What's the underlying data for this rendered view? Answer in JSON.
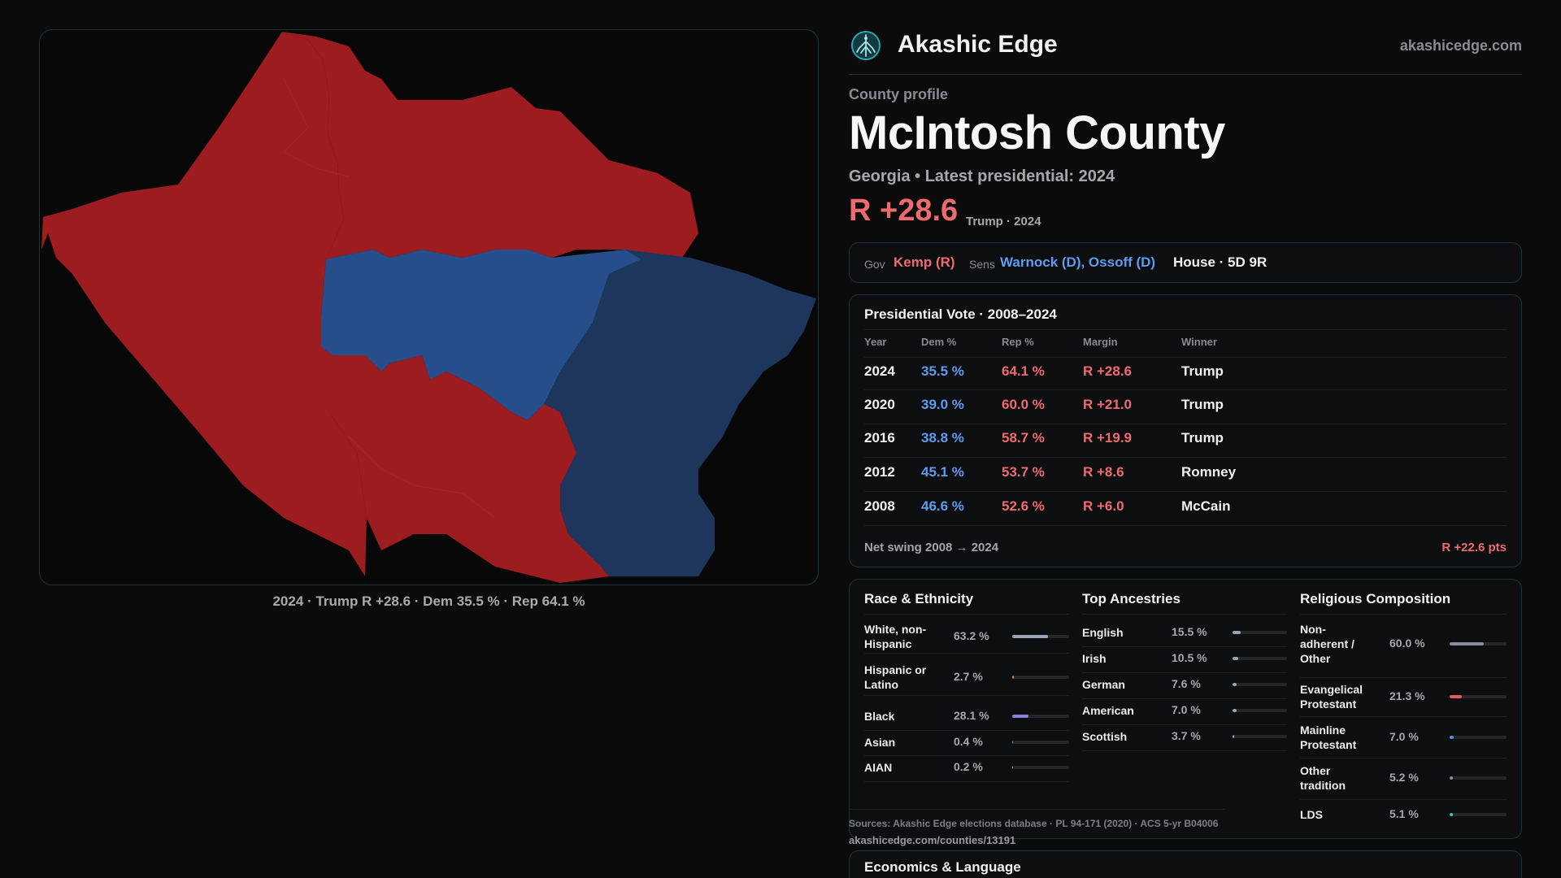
{
  "map": {
    "caption": "2024 · Trump R +28.6 · Dem 35.5 % · Rep 64.1 %",
    "colors": {
      "rep": "#9c1c20",
      "dem_light": "#254e8b",
      "dem_dark": "#1e355c"
    }
  },
  "header": {
    "brand": "Akashic Edge",
    "domain": "akashicedge.com",
    "logo_icon": "tree-icon"
  },
  "profile": {
    "eyebrow": "County profile",
    "county": "McIntosh County",
    "subtitle": "Georgia • Latest presidential: 2024",
    "margin": "R +28.6",
    "margin_note": "Trump · 2024"
  },
  "officials": {
    "gov_label": "Gov",
    "gov_value": "Kemp (R)",
    "sens_label": "Sens",
    "sens_value": "Warnock (D), Ossoff (D)",
    "house": "House · 5D 9R"
  },
  "presidential": {
    "title": "Presidential Vote · 2008–2024",
    "headers": [
      "Year",
      "Dem %",
      "Rep %",
      "Margin",
      "Winner"
    ],
    "rows": [
      {
        "year": "2024",
        "dem": "35.5 %",
        "rep": "64.1 %",
        "margin": "R +28.6",
        "winner": "Trump"
      },
      {
        "year": "2020",
        "dem": "39.0 %",
        "rep": "60.0 %",
        "margin": "R +21.0",
        "winner": "Trump"
      },
      {
        "year": "2016",
        "dem": "38.8 %",
        "rep": "58.7 %",
        "margin": "R +19.9",
        "winner": "Trump"
      },
      {
        "year": "2012",
        "dem": "45.1 %",
        "rep": "53.7 %",
        "margin": "R +8.6",
        "winner": "Romney"
      },
      {
        "year": "2008",
        "dem": "46.6 %",
        "rep": "52.6 %",
        "margin": "R +6.0",
        "winner": "McCain"
      }
    ],
    "swing_label": "Net swing 2008 → 2024",
    "swing_value": "R +22.6 pts"
  },
  "race": {
    "title": "Race & Ethnicity",
    "items": [
      {
        "label": "White, non-Hispanic",
        "value": "63.2 %",
        "pct": 63.2,
        "color": "#9aa3b8"
      },
      {
        "label": "Hispanic or Latino",
        "value": "2.7 %",
        "pct": 2.7,
        "color": "#e08a3c"
      },
      {
        "label": "Black",
        "value": "28.1 %",
        "pct": 28.1,
        "color": "#8b7fe0"
      },
      {
        "label": "Asian",
        "value": "0.4 %",
        "pct": 0.4,
        "color": "#5aa0e0"
      },
      {
        "label": "AIAN",
        "value": "0.2 %",
        "pct": 0.2,
        "color": "#60c0a0"
      }
    ]
  },
  "ancestry": {
    "title": "Top Ancestries",
    "items": [
      {
        "label": "English",
        "value": "15.5 %",
        "pct": 15.5,
        "color": "#9aa3b8"
      },
      {
        "label": "Irish",
        "value": "10.5 %",
        "pct": 10.5,
        "color": "#9aa3b8"
      },
      {
        "label": "German",
        "value": "7.6 %",
        "pct": 7.6,
        "color": "#9aa3b8"
      },
      {
        "label": "American",
        "value": "7.0 %",
        "pct": 7.0,
        "color": "#9aa3b8"
      },
      {
        "label": "Scottish",
        "value": "3.7 %",
        "pct": 3.7,
        "color": "#9aa3b8"
      }
    ]
  },
  "religion": {
    "title": "Religious Composition",
    "items": [
      {
        "label": "Non-adherent / Other",
        "value": "60.0 %",
        "pct": 60.0,
        "color": "#8a8e98"
      },
      {
        "label": "Evangelical Protestant",
        "value": "21.3 %",
        "pct": 21.3,
        "color": "#e55a64"
      },
      {
        "label": "Mainline Protestant",
        "value": "7.0 %",
        "pct": 7.0,
        "color": "#4f8fe0"
      },
      {
        "label": "Other tradition",
        "value": "5.2 %",
        "pct": 5.2,
        "color": "#8a8e98"
      },
      {
        "label": "LDS",
        "value": "5.1 %",
        "pct": 5.1,
        "color": "#3fc0c8"
      }
    ]
  },
  "sources": {
    "text": "Sources: Akashic Edge elections database · PL 94-171 (2020) · ACS 5-yr B04006",
    "url": "akashicedge.com/counties/13191"
  },
  "economics": {
    "title": "Economics & Language"
  }
}
